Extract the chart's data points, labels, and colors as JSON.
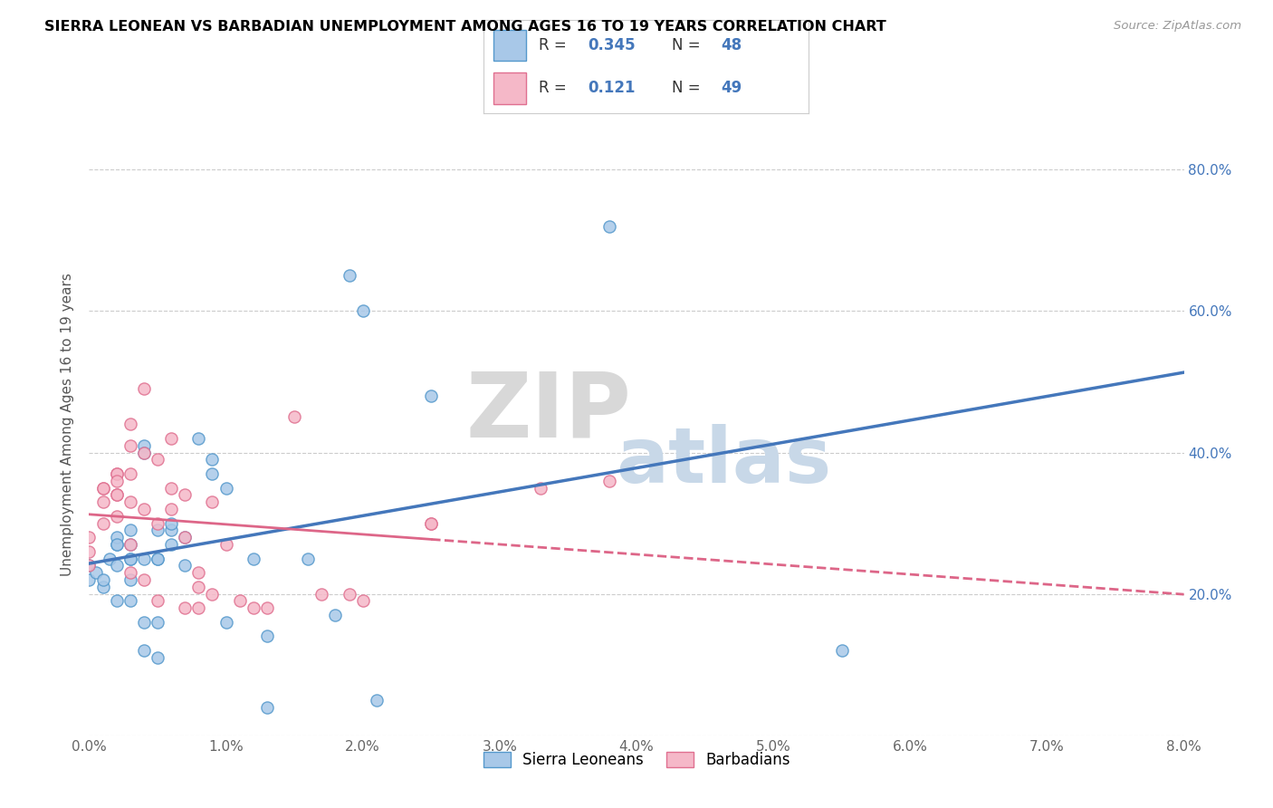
{
  "title": "SIERRA LEONEAN VS BARBADIAN UNEMPLOYMENT AMONG AGES 16 TO 19 YEARS CORRELATION CHART",
  "source": "Source: ZipAtlas.com",
  "ylabel": "Unemployment Among Ages 16 to 19 years",
  "xlim": [
    0.0,
    0.08
  ],
  "ylim": [
    0.0,
    0.88
  ],
  "color_blue": "#a8c8e8",
  "color_blue_edge": "#5599cc",
  "color_pink": "#f5b8c8",
  "color_pink_edge": "#e07090",
  "color_line_blue": "#4477bb",
  "color_line_pink": "#dd6688",
  "sierra_x": [
    0.0,
    0.0,
    0.0005,
    0.001,
    0.001,
    0.0015,
    0.002,
    0.002,
    0.002,
    0.002,
    0.002,
    0.003,
    0.003,
    0.003,
    0.003,
    0.003,
    0.003,
    0.004,
    0.004,
    0.004,
    0.004,
    0.004,
    0.005,
    0.005,
    0.005,
    0.005,
    0.005,
    0.006,
    0.006,
    0.006,
    0.007,
    0.007,
    0.008,
    0.009,
    0.009,
    0.01,
    0.01,
    0.012,
    0.013,
    0.013,
    0.016,
    0.018,
    0.019,
    0.02,
    0.021,
    0.025,
    0.038,
    0.055
  ],
  "sierra_y": [
    0.24,
    0.22,
    0.23,
    0.21,
    0.22,
    0.25,
    0.27,
    0.24,
    0.19,
    0.28,
    0.27,
    0.27,
    0.25,
    0.22,
    0.19,
    0.29,
    0.25,
    0.25,
    0.16,
    0.12,
    0.41,
    0.4,
    0.29,
    0.11,
    0.25,
    0.25,
    0.16,
    0.29,
    0.27,
    0.3,
    0.28,
    0.24,
    0.42,
    0.39,
    0.37,
    0.35,
    0.16,
    0.25,
    0.14,
    0.04,
    0.25,
    0.17,
    0.65,
    0.6,
    0.05,
    0.48,
    0.72,
    0.12
  ],
  "barbadian_x": [
    0.0,
    0.0,
    0.0,
    0.001,
    0.001,
    0.001,
    0.001,
    0.002,
    0.002,
    0.002,
    0.002,
    0.002,
    0.002,
    0.003,
    0.003,
    0.003,
    0.003,
    0.003,
    0.003,
    0.004,
    0.004,
    0.004,
    0.004,
    0.005,
    0.005,
    0.005,
    0.006,
    0.006,
    0.006,
    0.007,
    0.007,
    0.007,
    0.008,
    0.008,
    0.008,
    0.009,
    0.009,
    0.01,
    0.011,
    0.012,
    0.013,
    0.015,
    0.017,
    0.019,
    0.02,
    0.025,
    0.025,
    0.033,
    0.038
  ],
  "barbadian_y": [
    0.28,
    0.26,
    0.24,
    0.35,
    0.35,
    0.33,
    0.3,
    0.37,
    0.37,
    0.36,
    0.34,
    0.34,
    0.31,
    0.44,
    0.41,
    0.37,
    0.33,
    0.27,
    0.23,
    0.49,
    0.4,
    0.32,
    0.22,
    0.39,
    0.3,
    0.19,
    0.42,
    0.35,
    0.32,
    0.34,
    0.28,
    0.18,
    0.23,
    0.21,
    0.18,
    0.33,
    0.2,
    0.27,
    0.19,
    0.18,
    0.18,
    0.45,
    0.2,
    0.2,
    0.19,
    0.3,
    0.3,
    0.35,
    0.36
  ],
  "right_ytick_labels": [
    "20.0%",
    "40.0%",
    "60.0%",
    "80.0%"
  ],
  "right_ytick_vals": [
    0.2,
    0.4,
    0.6,
    0.8
  ]
}
